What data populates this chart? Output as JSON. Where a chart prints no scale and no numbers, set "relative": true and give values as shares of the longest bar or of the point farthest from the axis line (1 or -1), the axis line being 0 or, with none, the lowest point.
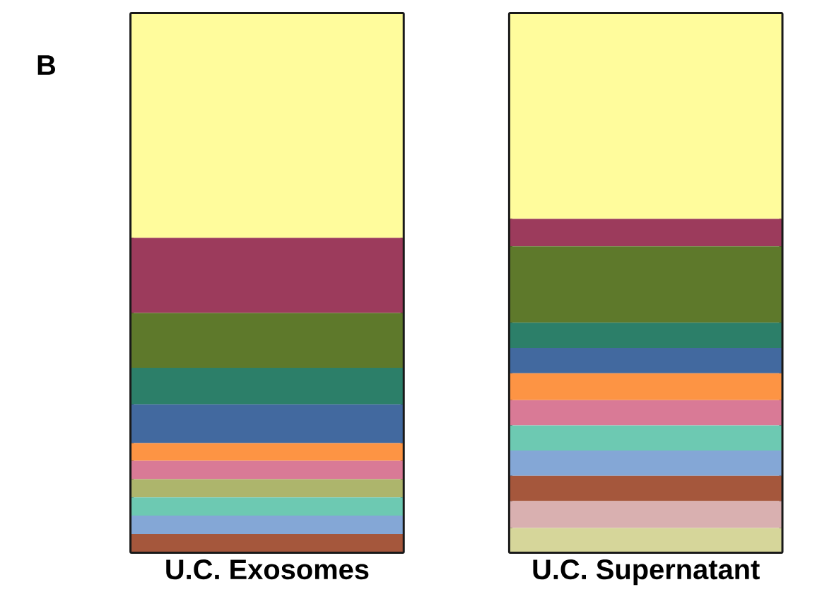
{
  "chart_data": {
    "type": "bar",
    "stacked": true,
    "relative": true,
    "categories": [
      "U.C.  Exosomes",
      "U.C. Supernatant"
    ],
    "annotations": [
      "B"
    ],
    "series": [
      {
        "color": "#d6d69a",
        "values": [
          null,
          0.044
        ]
      },
      {
        "color": "#d9b0b0",
        "values": [
          null,
          0.05
        ]
      },
      {
        "color": "#a5573c",
        "values": [
          0.033,
          0.047
        ]
      },
      {
        "color": "#84a7d6",
        "values": [
          0.034,
          0.047
        ]
      },
      {
        "color": "#6dc9b2",
        "values": [
          0.034,
          0.047
        ]
      },
      {
        "color": "#adb56c",
        "values": [
          0.034,
          null
        ]
      },
      {
        "color": "#d97a96",
        "values": [
          0.034,
          0.047
        ]
      },
      {
        "color": "#fd9444",
        "values": [
          0.033,
          0.05
        ]
      },
      {
        "color": "#42699f",
        "values": [
          0.072,
          0.047
        ]
      },
      {
        "color": "#2c7f69",
        "values": [
          0.068,
          0.047
        ]
      },
      {
        "color": "#5e792b",
        "values": [
          0.102,
          0.142
        ]
      },
      {
        "color": "#9c3b5c",
        "values": [
          0.14,
          0.051
        ]
      },
      {
        "color": "#fffc9c",
        "values": [
          0.416,
          0.381
        ]
      }
    ]
  }
}
